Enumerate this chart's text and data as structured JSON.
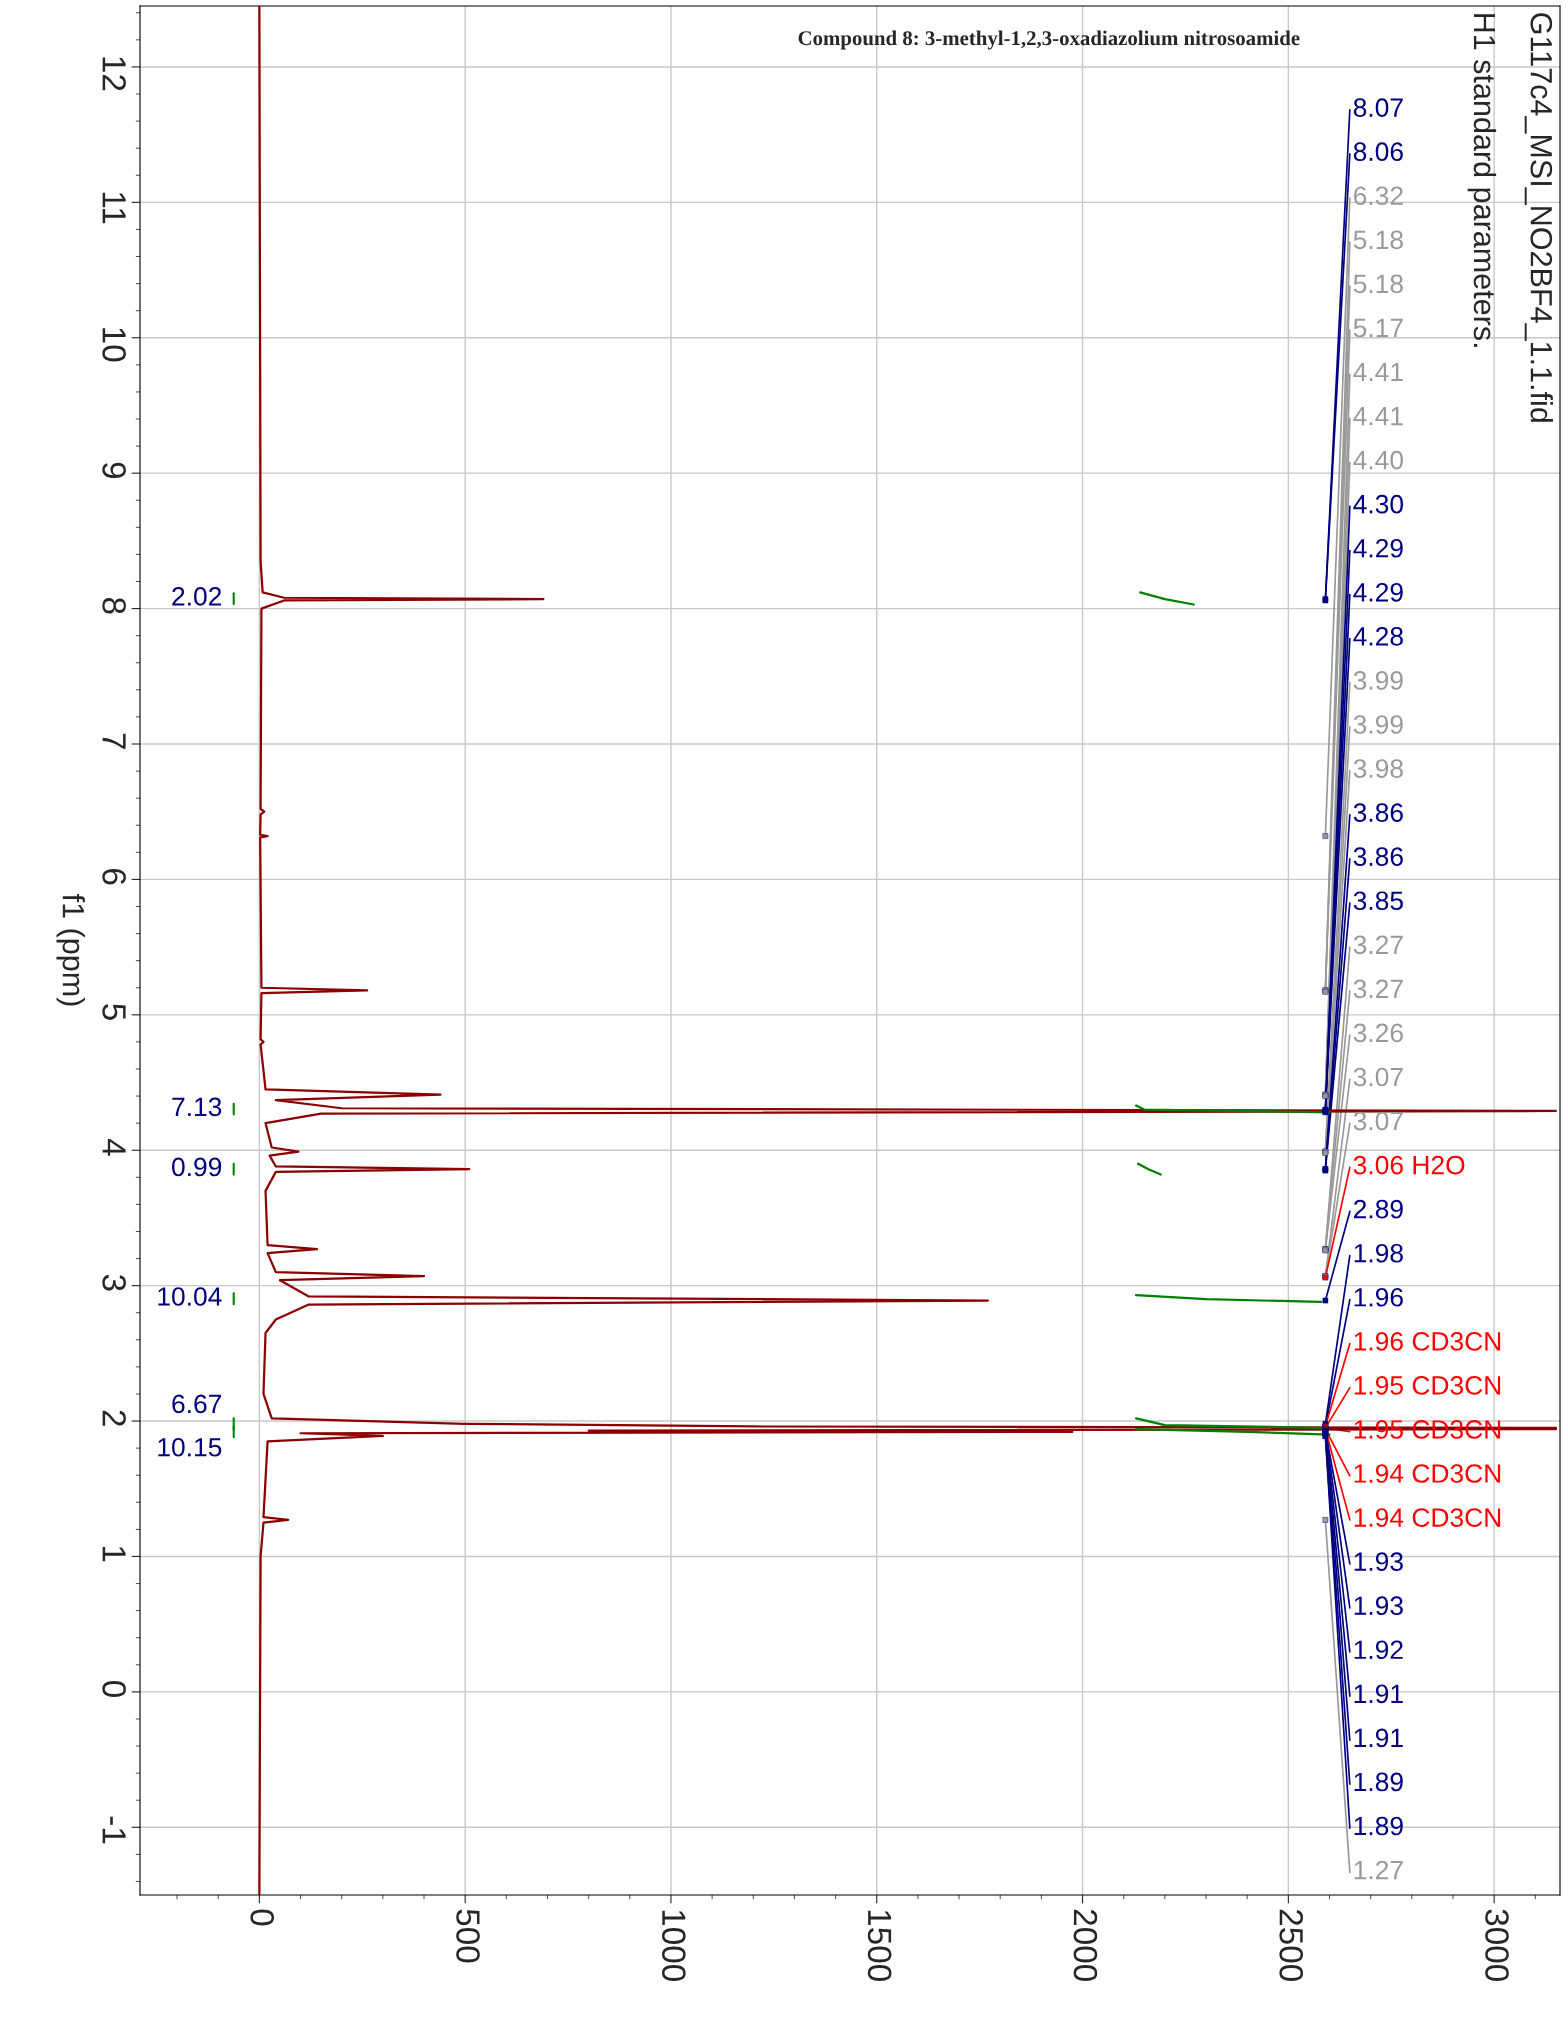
{
  "chart_data": {
    "type": "line",
    "title": "Compound 8: 3-methyl-1,2,3-oxadiazolium nitrosoamide",
    "ylabel": "f1 (ppm)",
    "xlim": [
      -290,
      3160
    ],
    "xticks": [
      0,
      500,
      1000,
      1500,
      2000,
      2500,
      3000
    ],
    "ylim": [
      -1.5,
      12.45
    ],
    "yticks": [
      -1,
      0,
      1,
      2,
      3,
      4,
      5,
      6,
      7,
      8,
      9,
      10,
      11,
      12
    ],
    "grid": true,
    "series": [
      {
        "color": "#8b0000",
        "values": [
          12.45,
          8.35,
          8.12,
          8.08,
          8.07,
          8.06,
          8.0,
          6.52,
          6.5,
          6.48,
          6.33,
          6.32,
          6.31,
          5.2,
          5.18,
          5.16,
          4.82,
          4.8,
          4.78,
          4.45,
          4.41,
          4.37,
          4.31,
          4.29,
          4.27,
          4.2,
          4.02,
          3.99,
          3.96,
          3.88,
          3.86,
          3.84,
          3.7,
          3.3,
          3.27,
          3.24,
          3.1,
          3.07,
          3.04,
          2.92,
          2.89,
          2.86,
          2.75,
          2.65,
          2.2,
          2.02,
          1.98,
          1.96,
          1.95,
          1.94,
          1.93,
          1.92,
          1.91,
          1.89,
          1.85,
          1.29,
          1.27,
          1.25,
          1.0,
          -1.5
        ],
        "x": [
          0,
          3,
          8,
          60,
          690,
          60,
          5,
          3,
          12,
          3,
          2,
          20,
          2,
          5,
          262,
          5,
          3,
          10,
          3,
          15,
          440,
          40,
          200,
          3150,
          150,
          15,
          30,
          95,
          25,
          40,
          510,
          40,
          15,
          20,
          140,
          20,
          40,
          400,
          50,
          120,
          1770,
          120,
          40,
          15,
          10,
          30,
          500,
          1200,
          3150,
          3150,
          800,
          1975,
          100,
          300,
          20,
          10,
          70,
          10,
          3,
          0
        ]
      },
      {
        "type": "line",
        "color": "#008000",
        "values": [
          8.12,
          8.07,
          8.03,
          null,
          4.33,
          4.3,
          4.28,
          null,
          3.9,
          3.86,
          3.82,
          null,
          2.93,
          2.9,
          2.88,
          null,
          2.02,
          1.97,
          1.95,
          null,
          1.94,
          1.92,
          1.9
        ],
        "x": [
          2140,
          2200,
          2270,
          null,
          2130,
          2150,
          2600,
          null,
          2135,
          2160,
          2190,
          null,
          2130,
          2300,
          2580,
          null,
          2130,
          2200,
          2580,
          null,
          2130,
          2400,
          2600
        ]
      },
      {
        "type": "scatter",
        "color": "#000080",
        "values": [
          8.07,
          8.06,
          6.32,
          5.18,
          5.18,
          5.17,
          4.41,
          4.41,
          4.4,
          4.3,
          4.29,
          4.29,
          4.28,
          3.99,
          3.99,
          3.98,
          3.86,
          3.86,
          3.85,
          3.27,
          3.27,
          3.26,
          3.07,
          3.07,
          3.06,
          2.89,
          1.98,
          1.96,
          1.96,
          1.95,
          1.95,
          1.94,
          1.94,
          1.93,
          1.93,
          1.92,
          1.91,
          1.91,
          1.89,
          1.89,
          1.27
        ],
        "x": [
          2590,
          2590,
          2590,
          2590,
          2590,
          2590,
          2590,
          2590,
          2590,
          2590,
          2590,
          2590,
          2590,
          2590,
          2590,
          2590,
          2590,
          2590,
          2590,
          2590,
          2590,
          2590,
          2590,
          2590,
          2590,
          2590,
          2590,
          2590,
          2590,
          2590,
          2590,
          2590,
          2590,
          2590,
          2590,
          2590,
          2590,
          2590,
          2590,
          2590,
          2590
        ],
        "colors": [
          "#000080",
          "#000080",
          "#999999",
          "#999999",
          "#999999",
          "#999999",
          "#999999",
          "#999999",
          "#999999",
          "#000080",
          "#000080",
          "#000080",
          "#000080",
          "#999999",
          "#999999",
          "#999999",
          "#000080",
          "#000080",
          "#000080",
          "#999999",
          "#999999",
          "#999999",
          "#999999",
          "#999999",
          "#ff0000",
          "#000080",
          "#000080",
          "#000080",
          "#ff0000",
          "#ff0000",
          "#ff0000",
          "#ff0000",
          "#ff0000",
          "#000080",
          "#000080",
          "#000080",
          "#000080",
          "#000080",
          "#000080",
          "#000080",
          "#999999"
        ],
        "value_labels": [
          "8.07",
          "8.06",
          "6.32",
          "5.18",
          "5.18",
          "5.17",
          "4.41",
          "4.41",
          "4.40",
          "4.30",
          "4.29",
          "4.29",
          "4.28",
          "3.99",
          "3.99",
          "3.98",
          "3.86",
          "3.86",
          "3.85",
          "3.27",
          "3.27",
          "3.26",
          "3.07",
          "3.07",
          "3.06 H2O",
          "2.89",
          "1.98",
          "1.96",
          "1.96 CD3CN",
          "1.95 CD3CN",
          "1.95 CD3CN",
          "1.94 CD3CN",
          "1.94 CD3CN",
          "1.93",
          "1.93",
          "1.92",
          "1.91",
          "1.91",
          "1.89",
          "1.89",
          "1.27"
        ]
      }
    ],
    "annotations": [
      "G117c4_MSI_NO2BF4_1.1.fid",
      "H1 standard parameters.",
      "2.02",
      "7.13",
      "0.99",
      "10.04",
      "6.67",
      "10.15"
    ]
  }
}
